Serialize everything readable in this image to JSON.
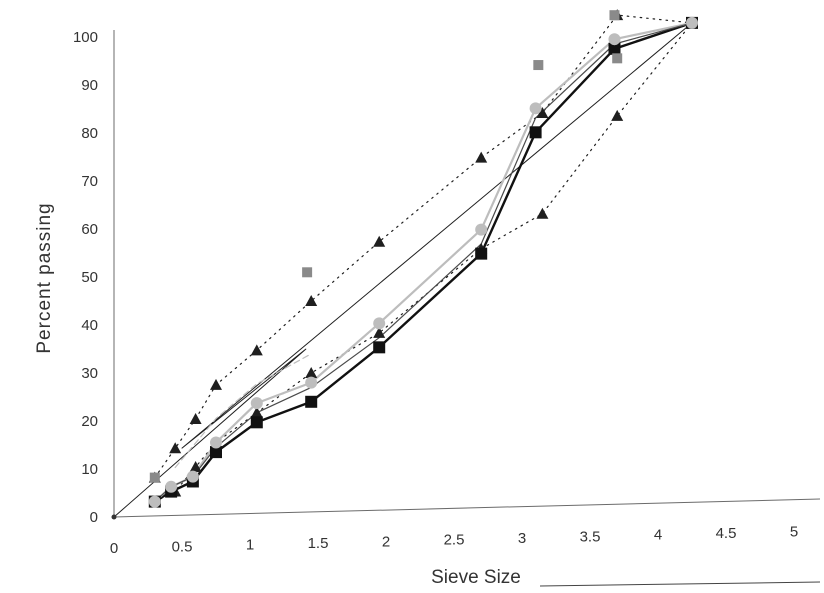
{
  "chart_data": {
    "type": "line",
    "title": "",
    "xlabel": "Sieve Size",
    "ylabel": "Percent passing",
    "xlim": [
      0,
      5
    ],
    "ylim": [
      0,
      100
    ],
    "x_ticks": [
      "0",
      "0.5",
      "1",
      "1.5",
      "2",
      "2.5",
      "3",
      "3.5",
      "4",
      "4.5",
      "5"
    ],
    "y_ticks": [
      "0",
      "10",
      "20",
      "30",
      "40",
      "50",
      "60",
      "70",
      "80",
      "90",
      "100"
    ],
    "grid": false,
    "legend": "none",
    "colors": {
      "dark": "#1f1f1f",
      "mid": "#4a4a4a",
      "light": "#bdbdbd",
      "gray_square": "#8a8a8a"
    },
    "series": [
      {
        "style": "solid",
        "color": "#1f1f1f",
        "marker": "none",
        "width": 1,
        "points": [
          [
            0,
            0
          ],
          [
            1.41,
            34
          ],
          [
            0.5,
            14
          ],
          [
            4.25,
            100
          ]
        ]
      },
      {
        "style": "dotted",
        "color": "#1f1f1f",
        "marker": "triangle",
        "width": 1.2,
        "points": [
          [
            0.3,
            8
          ],
          [
            0.45,
            14
          ],
          [
            0.6,
            20
          ],
          [
            0.75,
            27
          ],
          [
            1.05,
            34
          ],
          [
            1.45,
            44
          ],
          [
            1.95,
            56
          ],
          [
            2.7,
            73
          ],
          [
            3.15,
            82
          ],
          [
            3.7,
            102
          ],
          [
            4.25,
            100
          ]
        ]
      },
      {
        "style": "dotted",
        "color": "#1f1f1f",
        "marker": "triangle",
        "width": 1.2,
        "points": [
          [
            0.3,
            3
          ],
          [
            0.45,
            5
          ],
          [
            0.6,
            10
          ],
          [
            0.75,
            15
          ],
          [
            1.05,
            21
          ],
          [
            1.45,
            29
          ],
          [
            1.95,
            37
          ],
          [
            2.7,
            54
          ],
          [
            3.15,
            61
          ],
          [
            3.7,
            81
          ],
          [
            4.25,
            100
          ]
        ]
      },
      {
        "style": "solid",
        "color": "#111111",
        "marker": "square",
        "width": 2.4,
        "points": [
          [
            0.3,
            3
          ],
          [
            0.42,
            5
          ],
          [
            0.58,
            7
          ],
          [
            0.75,
            13
          ],
          [
            1.05,
            19
          ],
          [
            1.45,
            23
          ],
          [
            1.95,
            34
          ],
          [
            2.7,
            53
          ],
          [
            3.1,
            78
          ],
          [
            3.68,
            95
          ],
          [
            4.25,
            100
          ]
        ]
      },
      {
        "style": "solid",
        "color": "#bdbdbd",
        "marker": "circle",
        "width": 2.2,
        "points": [
          [
            0.3,
            3
          ],
          [
            0.42,
            6
          ],
          [
            0.58,
            8
          ],
          [
            0.75,
            15
          ],
          [
            1.05,
            23
          ],
          [
            1.45,
            27
          ],
          [
            1.95,
            39
          ],
          [
            2.7,
            58
          ],
          [
            3.1,
            83
          ],
          [
            3.68,
            97
          ],
          [
            4.25,
            100
          ]
        ]
      },
      {
        "style": "solid",
        "color": "#4a4a4a",
        "marker": "none",
        "width": 1.2,
        "points": [
          [
            0.3,
            3
          ],
          [
            0.42,
            6
          ],
          [
            0.58,
            8
          ],
          [
            0.75,
            14
          ],
          [
            1.05,
            21
          ],
          [
            1.45,
            26
          ],
          [
            1.95,
            36
          ],
          [
            2.7,
            55
          ],
          [
            3.1,
            81
          ],
          [
            3.68,
            96
          ],
          [
            4.25,
            100
          ]
        ]
      },
      {
        "style": "dashed",
        "color": "#bdbdbd",
        "marker": "none",
        "width": 1.2,
        "points": [
          [
            0.45,
            10
          ],
          [
            0.75,
            20
          ],
          [
            1.05,
            27
          ],
          [
            1.45,
            33
          ]
        ]
      },
      {
        "style": "none",
        "color": "#8a8a8a",
        "marker": "square-gray",
        "width": 0,
        "points": [
          [
            0.3,
            8
          ],
          [
            1.42,
            50
          ],
          [
            3.12,
            92
          ],
          [
            3.7,
            93
          ],
          [
            3.68,
            102
          ]
        ]
      }
    ]
  }
}
